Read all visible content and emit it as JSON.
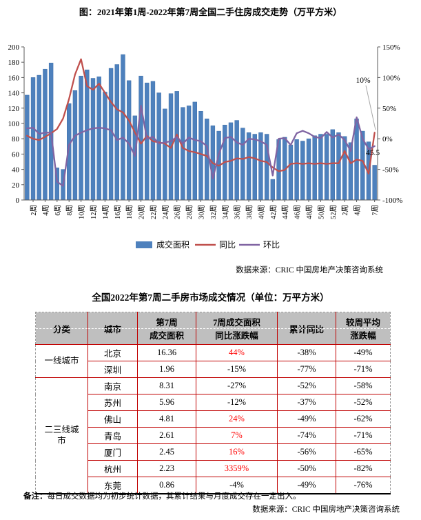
{
  "chart": {
    "title": "图：2021年第1周-2022年第7周全国二手住房成交走势（万平方米）",
    "legend": [
      {
        "label": "成交面积",
        "type": "bar",
        "color": "#4E81BD"
      },
      {
        "label": "同比",
        "type": "line",
        "color": "#C0504D"
      },
      {
        "label": "环比",
        "type": "line",
        "color": "#8064A2"
      }
    ],
    "source": "数据来源：CRIC 中国房地产决策咨询系统",
    "annotations": {
      "last_yoy_label": "10%",
      "last_bar_label": "45.5"
    }
  },
  "chart_data": {
    "type": "combo-bar-line",
    "title": "图：2021年第1周-2022年第7周全国二手住房成交走势（万平方米）",
    "x_tick_labels": [
      "",
      "2周",
      "",
      "4周",
      "",
      "6周",
      "",
      "8周",
      "",
      "10周",
      "",
      "12周",
      "",
      "14周",
      "",
      "16周",
      "",
      "18周",
      "",
      "20周",
      "",
      "22周",
      "",
      "24周",
      "",
      "26周",
      "",
      "28周",
      "",
      "30周",
      "",
      "32周",
      "",
      "34周",
      "",
      "36周",
      "",
      "38周",
      "",
      "40周",
      "",
      "42周",
      "",
      "44周",
      "",
      "46周",
      "",
      "48周",
      "",
      "50周",
      "",
      "52周",
      "",
      "2周",
      "",
      "4周",
      "",
      "",
      "7周"
    ],
    "left_axis": {
      "min": 0,
      "max": 200,
      "step": 20,
      "unit": "万平方米"
    },
    "right_axis": {
      "min": -100,
      "max": 150,
      "step": 50,
      "format": "percent"
    },
    "grid": false,
    "legend_position": "bottom",
    "series": [
      {
        "name": "成交面积",
        "type": "bar",
        "axis": "left",
        "color": "#4E81BD",
        "values": [
          137,
          160,
          163,
          171,
          179,
          42,
          40,
          126,
          143,
          162,
          170,
          159,
          161,
          141,
          172,
          177,
          190,
          156,
          110,
          162,
          153,
          155,
          140,
          119,
          139,
          142,
          121,
          123,
          128,
          116,
          106,
          97,
          90,
          98,
          101,
          104,
          94,
          88,
          86,
          88,
          86,
          27,
          79,
          82,
          72,
          79,
          77,
          80,
          84,
          86,
          86,
          92,
          88,
          83,
          75,
          106,
          90,
          76,
          45.5
        ]
      },
      {
        "name": "同比",
        "type": "line",
        "axis": "right",
        "color": "#C0504D",
        "values": [
          5,
          0,
          -2,
          3,
          9,
          16,
          33,
          65,
          105,
          130,
          86,
          80,
          90,
          75,
          60,
          48,
          43,
          30,
          10,
          -8,
          5,
          -4,
          -6,
          -8,
          -15,
          7,
          -15,
          -20,
          -22,
          -25,
          -28,
          -40,
          -44,
          -38,
          -36,
          -32,
          -33,
          -30,
          -32,
          -36,
          -38,
          -47,
          -53,
          -51,
          -41,
          -40,
          -41,
          -40,
          -41,
          -40,
          -41,
          -40,
          -40,
          -20,
          -40,
          -34,
          -36,
          -57,
          10
        ]
      },
      {
        "name": "环比",
        "type": "line",
        "axis": "right",
        "color": "#8064A2",
        "values": [
          17,
          18,
          8,
          10,
          10,
          -70,
          -77,
          -10,
          5,
          10,
          14,
          17,
          18,
          17,
          14,
          -2,
          2,
          -8,
          -28,
          54,
          0,
          3,
          -8,
          -6,
          -4,
          3,
          -8,
          2,
          -2,
          -4,
          -12,
          -65,
          -25,
          1,
          3,
          -6,
          -10,
          0,
          -1,
          -4,
          -10,
          -60,
          0,
          1,
          -10,
          9,
          13,
          9,
          3,
          1,
          11,
          2,
          7,
          -2,
          -20,
          35,
          0,
          -17,
          -12
        ]
      }
    ]
  },
  "table": {
    "title": "全国2022年第7周二手房市场成交情况（单位：万平方米）",
    "headers": [
      [
        "分类"
      ],
      [
        "城市"
      ],
      [
        "第7周",
        "成交面积"
      ],
      [
        "7周成交面积",
        "同比涨跌幅"
      ],
      [
        "累计同比"
      ],
      [
        "较周平均",
        "涨跌幅"
      ]
    ],
    "groups": [
      {
        "name": "一线城市",
        "rows": [
          {
            "city": "北京",
            "area": "16.36",
            "yoy": "44%",
            "yoy_red": true,
            "cum": "-38%",
            "weekly": "-49%"
          },
          {
            "city": "深圳",
            "area": "1.96",
            "yoy": "-15%",
            "yoy_red": false,
            "cum": "-77%",
            "weekly": "-71%"
          }
        ]
      },
      {
        "name": "二三线城市",
        "rows": [
          {
            "city": "南京",
            "area": "8.31",
            "yoy": "-27%",
            "yoy_red": false,
            "cum": "-52%",
            "weekly": "-58%"
          },
          {
            "city": "苏州",
            "area": "5.96",
            "yoy": "-12%",
            "yoy_red": false,
            "cum": "-37%",
            "weekly": "-52%"
          },
          {
            "city": "佛山",
            "area": "4.81",
            "yoy": "24%",
            "yoy_red": true,
            "cum": "-49%",
            "weekly": "-62%"
          },
          {
            "city": "青岛",
            "area": "2.61",
            "yoy": "7%",
            "yoy_red": true,
            "cum": "-74%",
            "weekly": "-71%"
          },
          {
            "city": "厦门",
            "area": "2.45",
            "yoy": "16%",
            "yoy_red": true,
            "cum": "-56%",
            "weekly": "-65%"
          },
          {
            "city": "杭州",
            "area": "2.23",
            "yoy": "3359%",
            "yoy_red": true,
            "cum": "-50%",
            "weekly": "-82%"
          },
          {
            "city": "东莞",
            "area": "0.86",
            "yoy": "-4%",
            "yoy_red": false,
            "cum": "-49%",
            "weekly": "-76%"
          }
        ]
      }
    ]
  },
  "footer": {
    "note_label": "备注：",
    "note_text": "每日成交数据均为初步统计数据，其累计结果与月度成交存在一定出入。",
    "source": "数据来源：CRIC 中国房地产决策咨询系统"
  }
}
